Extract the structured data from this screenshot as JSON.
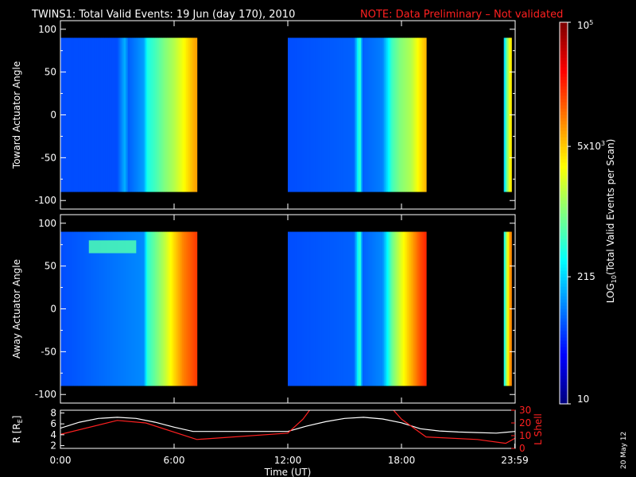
{
  "title": "TWINS1: Total Valid Events: 19 Jun (day 170), 2010",
  "note": "NOTE: Data Preliminary – Not validated",
  "date_stamp": "20 May 12",
  "colors": {
    "background": "#000000",
    "note": "#ff2020",
    "r_line": "#ffffff",
    "lshell_line": "#ff2020"
  },
  "chart_data": [
    {
      "type": "heatmap",
      "ylabel": "Toward Actuator Angle",
      "ylim": [
        -110,
        110
      ],
      "yticks": [
        "100",
        "50",
        "0",
        "-50",
        "-100"
      ],
      "ytick_values": [
        100,
        50,
        0,
        -50,
        -100
      ],
      "angle_range": [
        -90,
        90
      ],
      "xlim": [
        0,
        24
      ],
      "data_blocks": [
        {
          "start": 0.0,
          "end": 7.2,
          "intensity_profile": [
            [
              0,
              0.2
            ],
            [
              3.0,
              0.2
            ],
            [
              3.4,
              0.3
            ],
            [
              3.6,
              0.22
            ],
            [
              4.4,
              0.28
            ],
            [
              4.6,
              0.4
            ],
            [
              5.0,
              0.44
            ],
            [
              5.5,
              0.5
            ],
            [
              6.0,
              0.55
            ],
            [
              6.5,
              0.62
            ],
            [
              7.0,
              0.7
            ],
            [
              7.2,
              0.72
            ]
          ]
        },
        {
          "start": 12.0,
          "end": 19.3,
          "intensity_profile": [
            [
              12.0,
              0.2
            ],
            [
              15.5,
              0.22
            ],
            [
              15.8,
              0.45
            ],
            [
              15.95,
              0.22
            ],
            [
              17.0,
              0.25
            ],
            [
              17.5,
              0.44
            ],
            [
              17.9,
              0.5
            ],
            [
              18.5,
              0.55
            ],
            [
              19.0,
              0.65
            ],
            [
              19.3,
              0.7
            ]
          ]
        },
        {
          "start": 23.4,
          "end": 23.8,
          "intensity_profile": [
            [
              23.4,
              0.3
            ],
            [
              23.55,
              0.48
            ],
            [
              23.7,
              0.6
            ],
            [
              23.8,
              0.66
            ]
          ]
        }
      ]
    },
    {
      "type": "heatmap",
      "ylabel": "Away Actuator Angle",
      "ylim": [
        -110,
        110
      ],
      "yticks": [
        "100",
        "50",
        "0",
        "-50",
        "-100"
      ],
      "ytick_values": [
        100,
        50,
        0,
        -50,
        -100
      ],
      "angle_range": [
        -90,
        90
      ],
      "xlim": [
        0,
        24
      ],
      "data_blocks": [
        {
          "start": 0.0,
          "end": 7.2,
          "intensity_profile": [
            [
              0,
              0.2
            ],
            [
              4.4,
              0.26
            ],
            [
              4.6,
              0.42
            ],
            [
              5.0,
              0.48
            ],
            [
              5.5,
              0.56
            ],
            [
              6.0,
              0.66
            ],
            [
              6.5,
              0.75
            ],
            [
              7.0,
              0.8
            ],
            [
              7.2,
              0.82
            ]
          ]
        },
        {
          "start": 12.0,
          "end": 19.3,
          "intensity_profile": [
            [
              12.0,
              0.2
            ],
            [
              15.5,
              0.22
            ],
            [
              15.8,
              0.45
            ],
            [
              15.95,
              0.22
            ],
            [
              17.0,
              0.26
            ],
            [
              17.5,
              0.48
            ],
            [
              18.0,
              0.6
            ],
            [
              18.6,
              0.72
            ],
            [
              19.0,
              0.8
            ],
            [
              19.3,
              0.84
            ]
          ]
        },
        {
          "start": 23.4,
          "end": 23.8,
          "intensity_profile": [
            [
              23.4,
              0.35
            ],
            [
              23.55,
              0.55
            ],
            [
              23.7,
              0.7
            ],
            [
              23.8,
              0.76
            ]
          ]
        }
      ],
      "feature": {
        "start": 1.5,
        "end": 4.0,
        "angle_range": [
          65,
          80
        ],
        "intensity": 0.45
      }
    },
    {
      "type": "line",
      "xlabel": "Time (UT)",
      "ylabel": "R [R",
      "ylabel_sub": "E",
      "ylabel_end": "]",
      "ylim": [
        1.5,
        8.5
      ],
      "yticks": [
        "8",
        "6",
        "4",
        "2"
      ],
      "ytick_values": [
        8,
        6,
        4,
        2
      ],
      "y2label": "L Shell",
      "y2lim": [
        0,
        30
      ],
      "y2ticks": [
        "30",
        "20",
        "10",
        "0"
      ],
      "y2tick_values": [
        30,
        20,
        10,
        0
      ],
      "xlim": [
        0,
        24
      ],
      "xticks": [
        "0:00",
        "6:00",
        "12:00",
        "18:00",
        "23:59"
      ],
      "xtick_values": [
        0,
        6,
        12,
        18,
        23.98
      ],
      "series": [
        {
          "axis": "left",
          "x": [
            0,
            1,
            2,
            3,
            4,
            5,
            6,
            7,
            8,
            9,
            10,
            11,
            12,
            13,
            14,
            15,
            16,
            17,
            18,
            19,
            20,
            21,
            22,
            23,
            24
          ],
          "values": [
            5.2,
            6.3,
            7.0,
            7.2,
            7.0,
            6.3,
            5.4,
            4.6,
            4.6,
            4.6,
            4.6,
            4.6,
            4.6,
            5.6,
            6.4,
            7.0,
            7.2,
            6.9,
            6.2,
            5.1,
            4.7,
            4.5,
            4.4,
            4.3,
            4.6
          ]
        },
        {
          "axis": "right",
          "x": [
            0,
            3,
            4.5,
            7.2,
            12,
            12.8,
            13.3,
            13.5,
            16.5,
            16.6,
            17.4,
            18,
            19.3,
            22,
            23.5,
            24
          ],
          "values": [
            11,
            22,
            20,
            7,
            12,
            23,
            33,
            33,
            33,
            33,
            33,
            23,
            9,
            7,
            4,
            8
          ]
        }
      ]
    }
  ],
  "colorbar": {
    "label": "LOG",
    "label_sub": "10",
    "label_end": "(Total Valid Events per Scan)",
    "range": [
      10,
      100000
    ],
    "ticks": [
      {
        "label": "10",
        "value": 10
      },
      {
        "label": "215",
        "value": 215
      },
      {
        "label": "5x10",
        "sup": "3",
        "value": 5000
      },
      {
        "label": "10",
        "sup": "5",
        "value": 100000
      }
    ]
  }
}
